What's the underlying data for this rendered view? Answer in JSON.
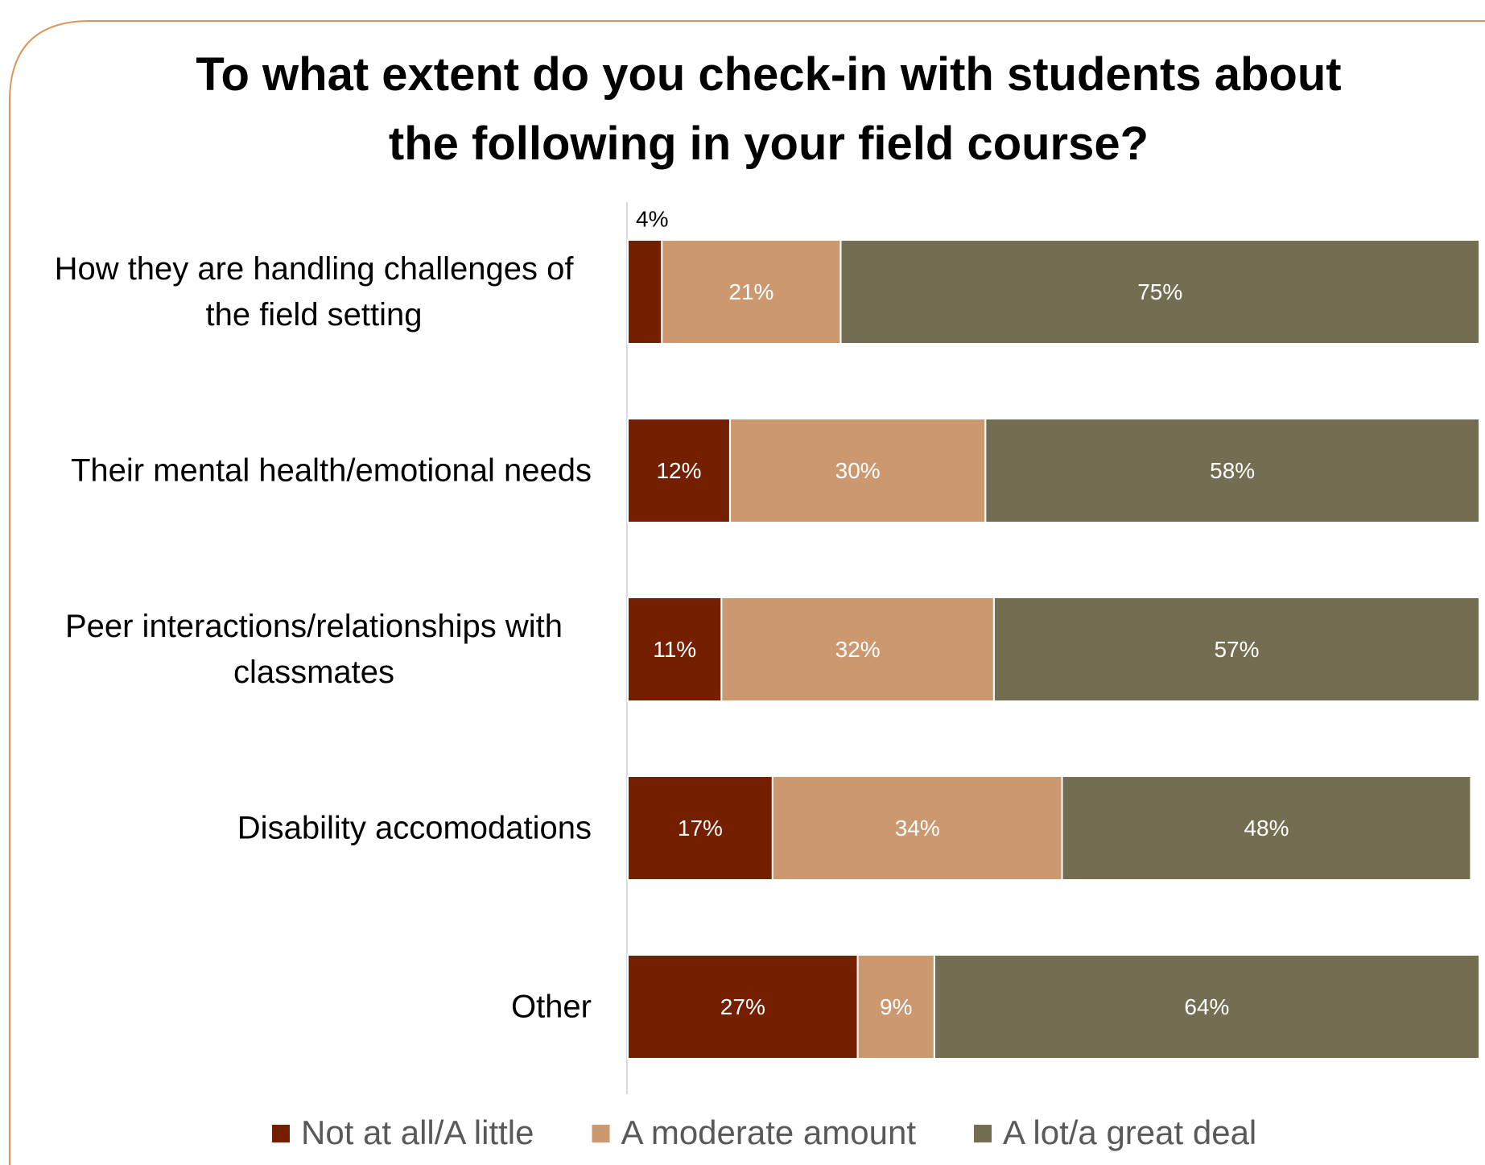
{
  "chart_data": {
    "type": "stacked-bar-horizontal",
    "title": "To what extent do you check-in with students about the following in your field course?",
    "categories": [
      "How they are handling challenges of the field setting",
      "Their mental health/emotional needs",
      "Peer interactions/relationships with classmates",
      "Disability accomodations",
      "Other"
    ],
    "xlim": [
      0,
      100
    ],
    "legend": "bottom",
    "series": [
      {
        "name": "Not at all/A little",
        "color": "#731f00",
        "values": [
          4,
          12,
          11,
          17,
          27
        ],
        "value_labels": [
          "4%",
          "12%",
          "11%",
          "17%",
          "27%"
        ]
      },
      {
        "name": "A moderate amount",
        "color": "#cc9870",
        "values": [
          21,
          30,
          32,
          34,
          9
        ],
        "value_labels": [
          "21%",
          "30%",
          "32%",
          "34%",
          "9%"
        ]
      },
      {
        "name": "A lot/a great deal",
        "color": "#736d52",
        "values": [
          75,
          58,
          57,
          48,
          64
        ],
        "value_labels": [
          "75%",
          "58%",
          "57%",
          "48%",
          "64%"
        ]
      }
    ]
  }
}
